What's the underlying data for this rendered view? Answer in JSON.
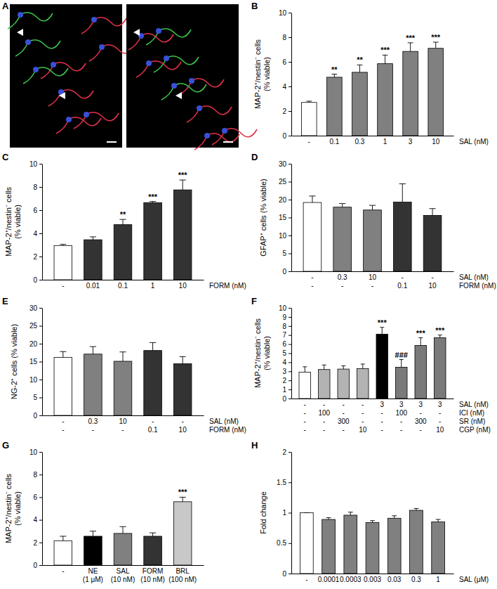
{
  "chart_data": [
    {
      "type": "image",
      "title": "A"
    },
    {
      "type": "bar",
      "title": "B",
      "ylabel": [
        "MAP-2⁺/nestin⁻ cells",
        "(% viable)"
      ],
      "categories": [
        "-",
        "0.1",
        "0.3",
        "1",
        "3",
        "10"
      ],
      "row_labels": [
        "SAL (nM)"
      ],
      "values": [
        2.7,
        4.75,
        5.15,
        5.85,
        6.85,
        7.1
      ],
      "errors": [
        0.1,
        0.25,
        0.6,
        0.7,
        0.7,
        0.5
      ],
      "annotations": [
        null,
        "**",
        "**",
        "***",
        "***",
        "***"
      ],
      "colors": [
        "#ffffff",
        "#808080",
        "#808080",
        "#808080",
        "#808080",
        "#808080"
      ],
      "ylim": [
        0,
        10
      ],
      "yticks": [
        0,
        2,
        4,
        6,
        8,
        10
      ]
    },
    {
      "type": "bar",
      "title": "C",
      "ylabel": [
        "MAP-2⁺/nestin⁻ cells",
        "(% viable)"
      ],
      "categories": [
        "-",
        "0.01",
        "0.1",
        "1",
        "10"
      ],
      "row_labels": [
        "FORM (nM)"
      ],
      "values": [
        2.95,
        3.45,
        4.75,
        6.65,
        7.75
      ],
      "errors": [
        0.1,
        0.25,
        0.45,
        0.1,
        0.85
      ],
      "annotations": [
        null,
        null,
        "**",
        "***",
        "***"
      ],
      "colors": [
        "#ffffff",
        "#333333",
        "#333333",
        "#333333",
        "#333333"
      ],
      "ylim": [
        0,
        10
      ],
      "yticks": [
        0,
        2,
        4,
        6,
        8,
        10
      ]
    },
    {
      "type": "bar",
      "title": "D",
      "ylabel": [
        "GFAP⁺ cells (% viable)"
      ],
      "categories": [
        [
          "-",
          "-"
        ],
        [
          "0.3",
          "-"
        ],
        [
          "10",
          "-"
        ],
        [
          "-",
          "0.1"
        ],
        [
          "-",
          "10"
        ]
      ],
      "row_labels": [
        "SAL (nM)",
        "FORM (nM)"
      ],
      "values": [
        19.2,
        17.9,
        17.1,
        19.3,
        15.6
      ],
      "errors": [
        1.8,
        1.0,
        1.3,
        5.1,
        1.9
      ],
      "colors": [
        "#ffffff",
        "#808080",
        "#808080",
        "#333333",
        "#333333"
      ],
      "ylim": [
        0,
        30
      ],
      "yticks": [
        0,
        5,
        10,
        15,
        20,
        25,
        30
      ]
    },
    {
      "type": "bar",
      "title": "E",
      "ylabel": [
        "NG-2⁺ cells (% viable)"
      ],
      "categories": [
        [
          "-",
          "-"
        ],
        [
          "0.3",
          "-"
        ],
        [
          "10",
          "-"
        ],
        [
          "-",
          "0.1"
        ],
        [
          "-",
          "10"
        ]
      ],
      "row_labels": [
        "SAL (nM)",
        "FORM (nM)"
      ],
      "values": [
        16.2,
        17.1,
        15.1,
        18.1,
        14.4
      ],
      "errors": [
        1.6,
        2.1,
        2.6,
        2.2,
        2.0
      ],
      "colors": [
        "#ffffff",
        "#808080",
        "#808080",
        "#333333",
        "#333333"
      ],
      "ylim": [
        0,
        30
      ],
      "yticks": [
        0,
        5,
        10,
        15,
        20,
        25,
        30
      ]
    },
    {
      "type": "bar",
      "title": "F",
      "ylabel": [
        "MAP-2⁺/nestin⁻ cells",
        "(% viable)"
      ],
      "categories": [
        [
          "-",
          "-",
          "-",
          "-"
        ],
        [
          "-",
          "100",
          "-",
          "-"
        ],
        [
          "-",
          "-",
          "300",
          "-"
        ],
        [
          "-",
          "-",
          "-",
          "10"
        ],
        [
          "3",
          "-",
          "-",
          "-"
        ],
        [
          "3",
          "100",
          "-",
          "-"
        ],
        [
          "3",
          "-",
          "300",
          "-"
        ],
        [
          "3",
          "-",
          "-",
          "10"
        ]
      ],
      "row_labels": [
        "SAL (nM)",
        "ICI (nM)",
        "SR (nM)",
        "CGP (nM)"
      ],
      "values": [
        2.9,
        3.2,
        3.25,
        3.3,
        7.1,
        3.45,
        5.85,
        6.7
      ],
      "errors": [
        0.6,
        0.5,
        0.35,
        0.5,
        0.75,
        0.85,
        0.85,
        0.3
      ],
      "annotations": [
        null,
        null,
        null,
        null,
        "***",
        "###",
        "***",
        "***"
      ],
      "colors": [
        "#ffffff",
        "#b3b3b3",
        "#b3b3b3",
        "#b3b3b3",
        "#000000",
        "#7a7a7a",
        "#7a7a7a",
        "#7a7a7a"
      ],
      "ylim": [
        0,
        10
      ],
      "yticks": [
        0,
        1,
        2,
        3,
        4,
        5,
        6,
        7,
        8,
        9,
        10
      ]
    },
    {
      "type": "bar",
      "title": "G",
      "ylabel": [
        "MAP-2⁺/nestin⁻ cells",
        "(% viable)"
      ],
      "categories": [
        [
          "-"
        ],
        [
          "NE",
          "(1 μM)"
        ],
        [
          "SAL",
          "(10 nM)"
        ],
        [
          "FORM",
          "(10 nM)"
        ],
        [
          "BRL",
          "(100 nM)"
        ]
      ],
      "values": [
        2.15,
        2.55,
        2.8,
        2.55,
        5.6
      ],
      "errors": [
        0.4,
        0.45,
        0.6,
        0.3,
        0.4
      ],
      "annotations": [
        null,
        null,
        null,
        null,
        "***"
      ],
      "colors": [
        "#ffffff",
        "#000000",
        "#808080",
        "#333333",
        "#c8c8c8"
      ],
      "ylim": [
        0,
        10
      ],
      "yticks": [
        0,
        2,
        4,
        6,
        8,
        10
      ]
    },
    {
      "type": "bar",
      "title": "H",
      "ylabel": [
        "Fold change"
      ],
      "categories": [
        "-",
        "0.0001",
        "0.0003",
        "0.003",
        "0.03",
        "0.3",
        "1"
      ],
      "row_labels": [
        "SAL (μM)"
      ],
      "values": [
        1.0,
        0.89,
        0.96,
        0.84,
        0.91,
        1.04,
        0.85
      ],
      "errors": [
        0,
        0.03,
        0.05,
        0.03,
        0.04,
        0.03,
        0.04
      ],
      "colors": [
        "#ffffff",
        "#808080",
        "#808080",
        "#808080",
        "#808080",
        "#808080",
        "#808080"
      ],
      "ylim": [
        0,
        2
      ],
      "yticks": [
        0,
        0.5,
        1,
        1.5,
        2
      ]
    }
  ]
}
